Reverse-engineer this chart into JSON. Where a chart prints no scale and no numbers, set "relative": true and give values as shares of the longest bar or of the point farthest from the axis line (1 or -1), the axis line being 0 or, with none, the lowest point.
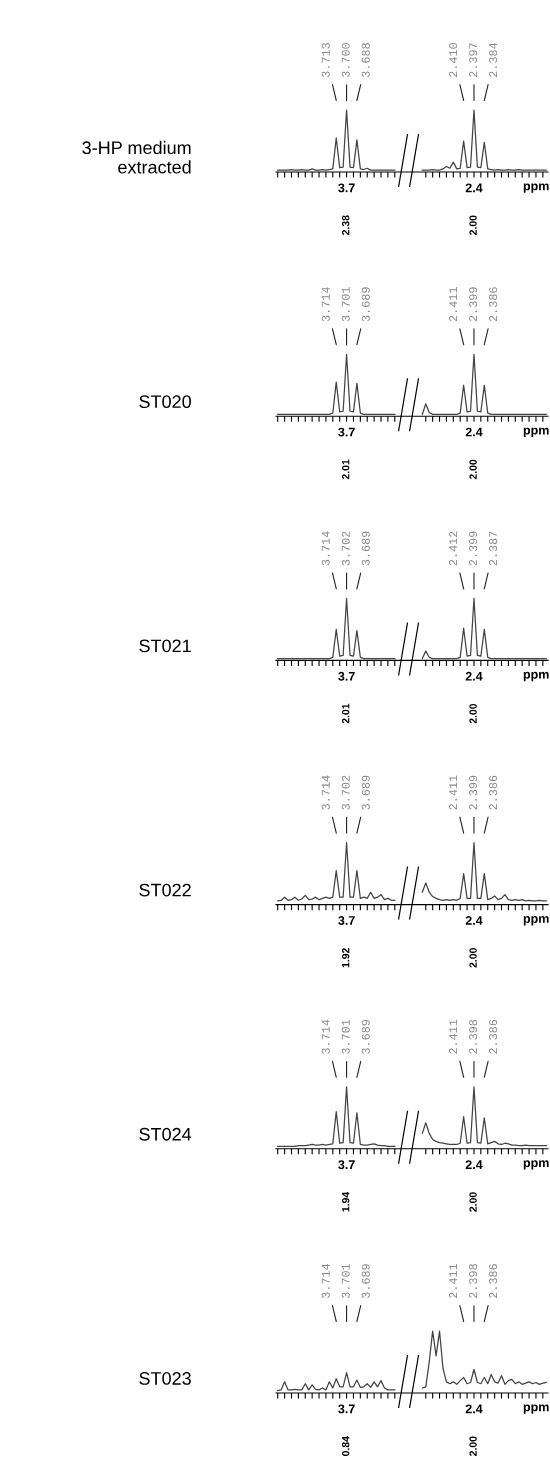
{
  "chart_data": [
    {
      "type": "line",
      "relative": true,
      "ylabel": "3-HP medium\nextracted",
      "xlabel": "ppm",
      "marker": "none",
      "line_style": "solid",
      "categories": [
        null,
        null,
        null,
        null,
        null,
        null,
        null,
        null,
        null,
        null,
        null,
        null,
        null,
        null,
        null,
        null,
        null,
        null,
        null,
        null,
        "3.7",
        null,
        null,
        null,
        null,
        null,
        null,
        null,
        null,
        null,
        null,
        null,
        null,
        null,
        null,
        null,
        null,
        null,
        null,
        null,
        null,
        null,
        null,
        null,
        null,
        null,
        null,
        null,
        null,
        null,
        null,
        null,
        null,
        null,
        null,
        null,
        null,
        "2.4",
        null,
        null,
        null,
        null,
        null,
        null,
        null,
        null,
        null,
        null,
        null,
        null,
        null,
        null,
        null,
        null,
        null,
        null,
        null,
        null,
        null
      ],
      "series": [
        {
          "color": "#444444",
          "values": [
            0.03,
            0.03,
            0.03,
            0.03,
            0.04,
            0.03,
            0.03,
            0.04,
            0.03,
            0.03,
            0.05,
            0.03,
            0.03,
            0.04,
            0.03,
            0.04,
            0.05,
            0.55,
            0.07,
            0.08,
            1.0,
            0.08,
            0.07,
            0.52,
            0.05,
            0.04,
            0.06,
            0.03,
            0.03,
            0.03,
            0.03,
            0.03,
            0.03,
            0.03,
            0.03,
            null,
            null,
            null,
            null,
            null,
            null,
            null,
            null,
            null,
            null,
            null,
            null,
            null,
            null,
            null,
            null,
            null,
            null,
            null,
            null,
            null,
            null,
            null,
            null,
            null,
            null,
            null,
            null,
            null,
            null,
            null,
            null,
            null,
            null,
            null,
            null,
            null,
            null,
            null,
            null,
            null,
            null,
            null,
            null
          ]
        },
        {
          "color": "#444444",
          "values": [
            null,
            null,
            null,
            null,
            null,
            null,
            null,
            null,
            null,
            null,
            null,
            null,
            null,
            null,
            null,
            null,
            null,
            null,
            null,
            null,
            null,
            null,
            null,
            null,
            null,
            null,
            null,
            null,
            null,
            null,
            null,
            null,
            null,
            null,
            null,
            null,
            null,
            null,
            null,
            null,
            null,
            null,
            0.03,
            0.03,
            0.03,
            0.04,
            0.03,
            0.03,
            0.05,
            0.09,
            0.06,
            0.16,
            0.05,
            0.06,
            0.5,
            0.07,
            0.08,
            1.0,
            0.08,
            0.07,
            0.48,
            0.05,
            0.04,
            0.03,
            0.04,
            0.03,
            0.03,
            0.04,
            0.03,
            0.03,
            0.04,
            0.03,
            0.03,
            0.03,
            0.03,
            0.03,
            0.03,
            0.03,
            0.03
          ]
        }
      ],
      "annotations": [
        "3.713",
        "3.700",
        "3.688",
        "2.38",
        "2.410",
        "2.397",
        "2.384",
        "2.00"
      ]
    },
    {
      "type": "line",
      "relative": true,
      "ylabel": "ST020",
      "xlabel": "ppm",
      "marker": "none",
      "line_style": "solid",
      "categories": [
        null,
        null,
        null,
        null,
        null,
        null,
        null,
        null,
        null,
        null,
        null,
        null,
        null,
        null,
        null,
        null,
        null,
        null,
        null,
        null,
        "3.7",
        null,
        null,
        null,
        null,
        null,
        null,
        null,
        null,
        null,
        null,
        null,
        null,
        null,
        null,
        null,
        null,
        null,
        null,
        null,
        null,
        null,
        null,
        null,
        null,
        null,
        null,
        null,
        null,
        null,
        null,
        null,
        null,
        null,
        null,
        null,
        null,
        "2.4",
        null,
        null,
        null,
        null,
        null,
        null,
        null,
        null,
        null,
        null,
        null,
        null,
        null,
        null,
        null,
        null,
        null,
        null,
        null,
        null,
        null
      ],
      "series": [
        {
          "color": "#444444",
          "values": [
            0.03,
            0.03,
            0.03,
            0.03,
            0.03,
            0.03,
            0.03,
            0.03,
            0.03,
            0.03,
            0.03,
            0.03,
            0.03,
            0.03,
            0.03,
            0.03,
            0.05,
            0.55,
            0.07,
            0.08,
            1.0,
            0.08,
            0.07,
            0.53,
            0.05,
            0.03,
            0.03,
            0.03,
            0.03,
            0.03,
            0.03,
            0.03,
            0.03,
            0.03,
            0.03,
            null,
            null,
            null,
            null,
            null,
            null,
            null,
            null,
            null,
            null,
            null,
            null,
            null,
            null,
            null,
            null,
            null,
            null,
            null,
            null,
            null,
            null,
            null,
            null,
            null,
            null,
            null,
            null,
            null,
            null,
            null,
            null,
            null,
            null,
            null,
            null,
            null,
            null,
            null,
            null,
            null,
            null,
            null,
            null
          ]
        },
        {
          "color": "#444444",
          "values": [
            null,
            null,
            null,
            null,
            null,
            null,
            null,
            null,
            null,
            null,
            null,
            null,
            null,
            null,
            null,
            null,
            null,
            null,
            null,
            null,
            null,
            null,
            null,
            null,
            null,
            null,
            null,
            null,
            null,
            null,
            null,
            null,
            null,
            null,
            null,
            null,
            null,
            null,
            null,
            null,
            null,
            null,
            0.03,
            0.2,
            0.06,
            0.03,
            0.03,
            0.03,
            0.03,
            0.03,
            0.03,
            0.03,
            0.03,
            0.05,
            0.5,
            0.07,
            0.08,
            1.0,
            0.08,
            0.07,
            0.5,
            0.05,
            0.03,
            0.03,
            0.03,
            0.03,
            0.03,
            0.03,
            0.03,
            0.03,
            0.03,
            0.03,
            0.03,
            0.03,
            0.03,
            0.03,
            0.03,
            0.03,
            0.03
          ]
        }
      ],
      "annotations": [
        "3.714",
        "3.701",
        "3.689",
        "2.01",
        "2.411",
        "2.399",
        "2.386",
        "2.00"
      ]
    },
    {
      "type": "line",
      "relative": true,
      "ylabel": "ST021",
      "xlabel": "ppm",
      "marker": "none",
      "line_style": "solid",
      "categories": [
        null,
        null,
        null,
        null,
        null,
        null,
        null,
        null,
        null,
        null,
        null,
        null,
        null,
        null,
        null,
        null,
        null,
        null,
        null,
        null,
        "3.7",
        null,
        null,
        null,
        null,
        null,
        null,
        null,
        null,
        null,
        null,
        null,
        null,
        null,
        null,
        null,
        null,
        null,
        null,
        null,
        null,
        null,
        null,
        null,
        null,
        null,
        null,
        null,
        null,
        null,
        null,
        null,
        null,
        null,
        null,
        null,
        null,
        "2.4",
        null,
        null,
        null,
        null,
        null,
        null,
        null,
        null,
        null,
        null,
        null,
        null,
        null,
        null,
        null,
        null,
        null,
        null,
        null,
        null,
        null
      ],
      "series": [
        {
          "color": "#444444",
          "values": [
            0.03,
            0.03,
            0.03,
            0.03,
            0.03,
            0.03,
            0.03,
            0.03,
            0.03,
            0.03,
            0.03,
            0.03,
            0.03,
            0.03,
            0.03,
            0.03,
            0.05,
            0.5,
            0.07,
            0.08,
            1.0,
            0.08,
            0.07,
            0.48,
            0.05,
            0.03,
            0.03,
            0.03,
            0.03,
            0.03,
            0.03,
            0.03,
            0.03,
            0.03,
            0.03,
            null,
            null,
            null,
            null,
            null,
            null,
            null,
            null,
            null,
            null,
            null,
            null,
            null,
            null,
            null,
            null,
            null,
            null,
            null,
            null,
            null,
            null,
            null,
            null,
            null,
            null,
            null,
            null,
            null,
            null,
            null,
            null,
            null,
            null,
            null,
            null,
            null,
            null,
            null,
            null,
            null,
            null,
            null,
            null
          ]
        },
        {
          "color": "#444444",
          "values": [
            null,
            null,
            null,
            null,
            null,
            null,
            null,
            null,
            null,
            null,
            null,
            null,
            null,
            null,
            null,
            null,
            null,
            null,
            null,
            null,
            null,
            null,
            null,
            null,
            null,
            null,
            null,
            null,
            null,
            null,
            null,
            null,
            null,
            null,
            null,
            null,
            null,
            null,
            null,
            null,
            null,
            null,
            0.03,
            0.15,
            0.05,
            0.03,
            0.03,
            0.03,
            0.03,
            0.03,
            0.03,
            0.03,
            0.03,
            0.05,
            0.52,
            0.07,
            0.08,
            1.0,
            0.08,
            0.07,
            0.5,
            0.05,
            0.03,
            0.03,
            0.03,
            0.03,
            0.03,
            0.03,
            0.03,
            0.03,
            0.03,
            0.03,
            0.03,
            0.03,
            0.03,
            0.03,
            0.03,
            0.03,
            0.03
          ]
        }
      ],
      "annotations": [
        "3.714",
        "3.702",
        "3.689",
        "2.01",
        "2.412",
        "2.399",
        "2.387",
        "2.00"
      ]
    },
    {
      "type": "line",
      "relative": true,
      "ylabel": "ST022",
      "xlabel": "ppm",
      "marker": "none",
      "line_style": "solid",
      "categories": [
        null,
        null,
        null,
        null,
        null,
        null,
        null,
        null,
        null,
        null,
        null,
        null,
        null,
        null,
        null,
        null,
        null,
        null,
        null,
        null,
        "3.7",
        null,
        null,
        null,
        null,
        null,
        null,
        null,
        null,
        null,
        null,
        null,
        null,
        null,
        null,
        null,
        null,
        null,
        null,
        null,
        null,
        null,
        null,
        null,
        null,
        null,
        null,
        null,
        null,
        null,
        null,
        null,
        null,
        null,
        null,
        null,
        null,
        "2.4",
        null,
        null,
        null,
        null,
        null,
        null,
        null,
        null,
        null,
        null,
        null,
        null,
        null,
        null,
        null,
        null,
        null,
        null,
        null,
        null,
        null
      ],
      "series": [
        {
          "color": "#444444",
          "values": [
            0.06,
            0.07,
            0.12,
            0.07,
            0.08,
            0.12,
            0.07,
            0.09,
            0.15,
            0.08,
            0.09,
            0.12,
            0.08,
            0.1,
            0.12,
            0.1,
            0.12,
            0.55,
            0.12,
            0.12,
            1.0,
            0.12,
            0.12,
            0.55,
            0.1,
            0.12,
            0.1,
            0.2,
            0.1,
            0.12,
            0.16,
            0.08,
            0.1,
            0.07,
            0.07,
            null,
            null,
            null,
            null,
            null,
            null,
            null,
            null,
            null,
            null,
            null,
            null,
            null,
            null,
            null,
            null,
            null,
            null,
            null,
            null,
            null,
            null,
            null,
            null,
            null,
            null,
            null,
            null,
            null,
            null,
            null,
            null,
            null,
            null,
            null,
            null,
            null,
            null,
            null,
            null,
            null,
            null,
            null,
            null
          ]
        },
        {
          "color": "#444444",
          "values": [
            null,
            null,
            null,
            null,
            null,
            null,
            null,
            null,
            null,
            null,
            null,
            null,
            null,
            null,
            null,
            null,
            null,
            null,
            null,
            null,
            null,
            null,
            null,
            null,
            null,
            null,
            null,
            null,
            null,
            null,
            null,
            null,
            null,
            null,
            null,
            null,
            null,
            null,
            null,
            null,
            null,
            null,
            0.2,
            0.35,
            0.2,
            0.13,
            0.1,
            0.08,
            0.07,
            0.08,
            0.07,
            0.08,
            0.07,
            0.1,
            0.5,
            0.1,
            0.1,
            1.0,
            0.1,
            0.1,
            0.5,
            0.08,
            0.1,
            0.14,
            0.08,
            0.1,
            0.16,
            0.08,
            0.07,
            0.08,
            0.07,
            0.08,
            0.06,
            0.07,
            0.06,
            0.06,
            0.07,
            0.06,
            0.06
          ]
        }
      ],
      "annotations": [
        "3.714",
        "3.702",
        "3.689",
        "1.92",
        "2.411",
        "2.399",
        "2.386",
        "2.00"
      ]
    },
    {
      "type": "line",
      "relative": true,
      "ylabel": "ST024",
      "xlabel": "ppm",
      "marker": "none",
      "line_style": "solid",
      "categories": [
        null,
        null,
        null,
        null,
        null,
        null,
        null,
        null,
        null,
        null,
        null,
        null,
        null,
        null,
        null,
        null,
        null,
        null,
        null,
        null,
        "3.7",
        null,
        null,
        null,
        null,
        null,
        null,
        null,
        null,
        null,
        null,
        null,
        null,
        null,
        null,
        null,
        null,
        null,
        null,
        null,
        null,
        null,
        null,
        null,
        null,
        null,
        null,
        null,
        null,
        null,
        null,
        null,
        null,
        null,
        null,
        null,
        null,
        "2.4",
        null,
        null,
        null,
        null,
        null,
        null,
        null,
        null,
        null,
        null,
        null,
        null,
        null,
        null,
        null,
        null,
        null,
        null,
        null,
        null,
        null
      ],
      "series": [
        {
          "color": "#444444",
          "values": [
            0.04,
            0.04,
            0.04,
            0.04,
            0.04,
            0.04,
            0.05,
            0.05,
            0.05,
            0.06,
            0.07,
            0.06,
            0.06,
            0.07,
            0.06,
            0.07,
            0.08,
            0.6,
            0.09,
            0.1,
            1.0,
            0.1,
            0.09,
            0.58,
            0.07,
            0.06,
            0.06,
            0.07,
            0.08,
            0.06,
            0.05,
            0.05,
            0.04,
            0.04,
            0.04,
            null,
            null,
            null,
            null,
            null,
            null,
            null,
            null,
            null,
            null,
            null,
            null,
            null,
            null,
            null,
            null,
            null,
            null,
            null,
            null,
            null,
            null,
            null,
            null,
            null,
            null,
            null,
            null,
            null,
            null,
            null,
            null,
            null,
            null,
            null,
            null,
            null,
            null,
            null,
            null,
            null,
            null,
            null,
            null
          ]
        },
        {
          "color": "#444444",
          "values": [
            null,
            null,
            null,
            null,
            null,
            null,
            null,
            null,
            null,
            null,
            null,
            null,
            null,
            null,
            null,
            null,
            null,
            null,
            null,
            null,
            null,
            null,
            null,
            null,
            null,
            null,
            null,
            null,
            null,
            null,
            null,
            null,
            null,
            null,
            null,
            null,
            null,
            null,
            null,
            null,
            null,
            null,
            0.25,
            0.42,
            0.25,
            0.15,
            0.12,
            0.1,
            0.09,
            0.08,
            0.07,
            0.07,
            0.07,
            0.09,
            0.52,
            0.09,
            0.1,
            1.0,
            0.1,
            0.09,
            0.5,
            0.08,
            0.1,
            0.12,
            0.08,
            0.07,
            0.09,
            0.08,
            0.06,
            0.06,
            0.05,
            0.05,
            0.06,
            0.05,
            0.05,
            0.05,
            0.05,
            0.05,
            0.05
          ]
        }
      ],
      "annotations": [
        "3.714",
        "3.701",
        "3.689",
        "1.94",
        "2.411",
        "2.398",
        "2.386",
        "2.00"
      ]
    },
    {
      "type": "line",
      "relative": true,
      "ylabel": "ST023",
      "xlabel": "ppm",
      "marker": "none",
      "line_style": "solid",
      "categories": [
        null,
        null,
        null,
        null,
        null,
        null,
        null,
        null,
        null,
        null,
        null,
        null,
        null,
        null,
        null,
        null,
        null,
        null,
        null,
        null,
        "3.7",
        null,
        null,
        null,
        null,
        null,
        null,
        null,
        null,
        null,
        null,
        null,
        null,
        null,
        null,
        null,
        null,
        null,
        null,
        null,
        null,
        null,
        null,
        null,
        null,
        null,
        null,
        null,
        null,
        null,
        null,
        null,
        null,
        null,
        null,
        null,
        null,
        "2.4",
        null,
        null,
        null,
        null,
        null,
        null,
        null,
        null,
        null,
        null,
        null,
        null,
        null,
        null,
        null,
        null,
        null,
        null,
        null,
        null,
        null
      ],
      "series": [
        {
          "color": "#444444",
          "values": [
            0.04,
            0.05,
            0.18,
            0.05,
            0.05,
            0.06,
            0.05,
            0.05,
            0.15,
            0.05,
            0.13,
            0.06,
            0.05,
            0.08,
            0.05,
            0.18,
            0.08,
            0.23,
            0.1,
            0.1,
            0.33,
            0.1,
            0.1,
            0.21,
            0.09,
            0.1,
            0.15,
            0.09,
            0.18,
            0.1,
            0.2,
            0.08,
            0.05,
            0.05,
            0.05,
            null,
            null,
            null,
            null,
            null,
            null,
            null,
            null,
            null,
            null,
            null,
            null,
            null,
            null,
            null,
            null,
            null,
            null,
            null,
            null,
            null,
            null,
            null,
            null,
            null,
            null,
            null,
            null,
            null,
            null,
            null,
            null,
            null,
            null,
            null,
            null,
            null,
            null,
            null,
            null,
            null,
            null,
            null,
            null
          ]
        },
        {
          "color": "#444444",
          "values": [
            null,
            null,
            null,
            null,
            null,
            null,
            null,
            null,
            null,
            null,
            null,
            null,
            null,
            null,
            null,
            null,
            null,
            null,
            null,
            null,
            null,
            null,
            null,
            null,
            null,
            null,
            null,
            null,
            null,
            null,
            null,
            null,
            null,
            null,
            null,
            null,
            null,
            null,
            null,
            null,
            null,
            null,
            0.08,
            0.1,
            0.5,
            1.0,
            0.6,
            1.0,
            0.4,
            0.18,
            0.15,
            0.18,
            0.14,
            0.2,
            0.25,
            0.15,
            0.17,
            0.38,
            0.17,
            0.15,
            0.25,
            0.15,
            0.3,
            0.18,
            0.16,
            0.28,
            0.14,
            0.2,
            0.22,
            0.15,
            0.18,
            0.14,
            0.16,
            0.18,
            0.15,
            0.17,
            0.14,
            0.16,
            0.17
          ]
        }
      ],
      "annotations": [
        "3.714",
        "3.701",
        "3.689",
        "0.84",
        "2.411",
        "2.398",
        "2.386",
        "2.00"
      ]
    }
  ]
}
